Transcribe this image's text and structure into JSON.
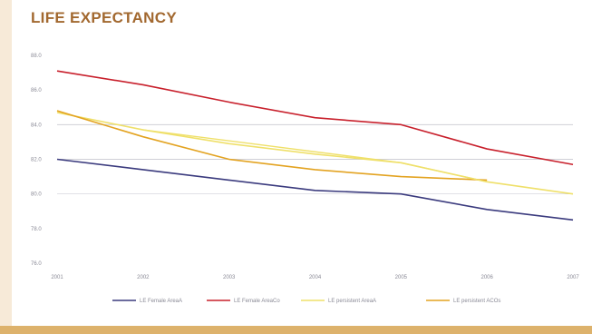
{
  "page": {
    "title": "LIFE EXPECTANCY",
    "colors": {
      "side_bar": "#f7ead8",
      "bottom_bar": "#ddb26c",
      "title": "#a2682f",
      "grid": "#cfcfd6"
    }
  },
  "chart_data": {
    "type": "line",
    "title": "LIFE EXPECTANCY",
    "xlabel": "",
    "ylabel": "",
    "x": [
      "2001",
      "2002",
      "2003",
      "2004",
      "2005",
      "2006",
      "2007"
    ],
    "yticks": [
      76,
      78,
      80,
      82,
      84,
      86,
      88
    ],
    "ytick_labels": [
      "76.0",
      "78.0",
      "80.0",
      "82.0",
      "84.0",
      "86.0",
      "88.0"
    ],
    "ylim": [
      76,
      88
    ],
    "grid": "horizontal, at 84.0 and 82.0 only",
    "legend_position": "bottom",
    "series": [
      {
        "name": "LE Female AreaA",
        "color": "#3b3b7e",
        "values": [
          82.0,
          81.4,
          80.8,
          80.2,
          80.0,
          79.1,
          78.5
        ]
      },
      {
        "name": "LE Female AreaCo",
        "color": "#c8202c",
        "values": [
          87.1,
          86.3,
          85.3,
          84.4,
          84.0,
          82.6,
          81.7
        ]
      },
      {
        "name": "LE persistent AreaA",
        "color": "#efe06a",
        "values": [
          84.7,
          83.7,
          82.9,
          82.3,
          81.8,
          80.7,
          80.0
        ]
      },
      {
        "name": "LE persistent ACOs",
        "color": "#e3a321",
        "values": [
          84.8,
          83.3,
          82.0,
          81.4,
          81.0,
          80.8,
          null
        ]
      }
    ],
    "extra_segments": [
      {
        "series_index": 2,
        "from": {
          "x": "2002",
          "y": 83.7
        },
        "to": {
          "x": "2005",
          "y": 81.8
        }
      },
      {
        "series_index": 2,
        "from": {
          "x": "2005",
          "y": 81.8
        },
        "to": {
          "x": "2006",
          "y": 80.7
        }
      }
    ]
  }
}
